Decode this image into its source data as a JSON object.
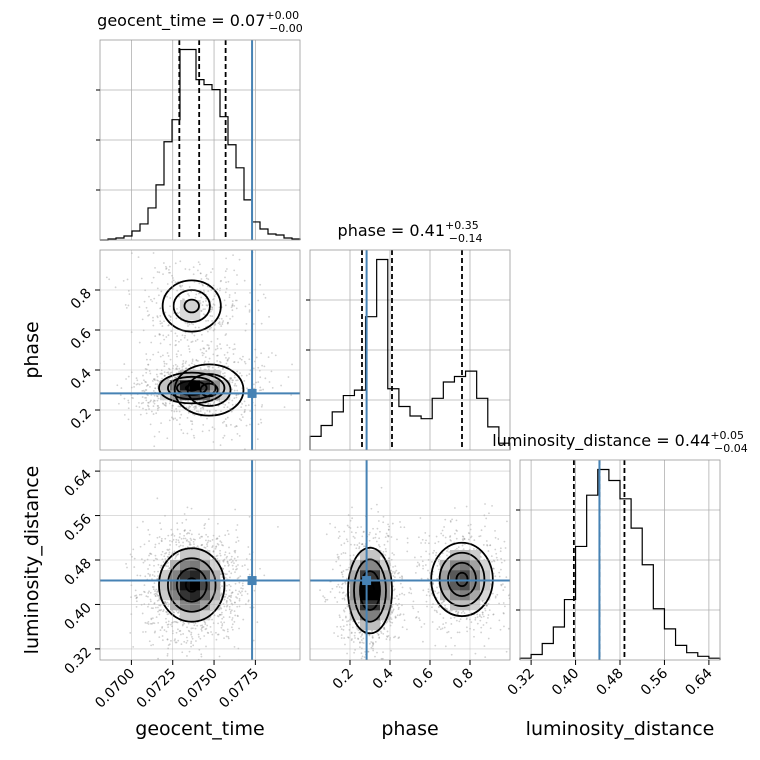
{
  "chart_data": {
    "type": "corner",
    "parameters": [
      "geocent_time",
      "phase",
      "luminosity_distance"
    ],
    "axis_labels": [
      "geocent_time",
      "phase",
      "luminosity_distance"
    ],
    "truth": {
      "geocent_time": 0.0773,
      "phase": 0.283,
      "luminosity_distance": 0.443
    },
    "truth_color": "#4682b4",
    "histogram_color": "#000000",
    "grid": true,
    "ticks": {
      "geocent_time": {
        "values": [
          0.07,
          0.0725,
          0.075,
          0.0775
        ],
        "labels": [
          "0.0700",
          "0.0725",
          "0.0750",
          "0.0775"
        ]
      },
      "phase": {
        "values": [
          0.2,
          0.4,
          0.6,
          0.8
        ],
        "labels": [
          "0.2",
          "0.4",
          "0.6",
          "0.8"
        ]
      },
      "luminosity_distance": {
        "values": [
          0.32,
          0.4,
          0.48,
          0.56,
          0.64
        ],
        "labels": [
          "0.32",
          "0.40",
          "0.48",
          "0.56",
          "0.64"
        ]
      }
    },
    "marginals": [
      {
        "parameter": "geocent_time",
        "title_prefix": "geocent_time = 0.07",
        "title_sup": "+0.00",
        "title_sub": "−0.00",
        "range": [
          0.0681,
          0.0802
        ],
        "quantiles": [
          0.0729,
          0.0741,
          0.0757
        ],
        "counts": [
          0,
          1,
          2,
          4,
          9,
          16,
          32,
          55,
          98,
          120,
          190,
          190,
          160,
          155,
          150,
          123,
          95,
          72,
          40,
          18,
          11,
          6,
          5,
          2,
          1
        ]
      },
      {
        "parameter": "phase",
        "title_prefix": "phase = 0.41",
        "title_sup": "+0.35",
        "title_sub": "−0.14",
        "range": [
          0.0,
          1.0
        ],
        "quantiles": [
          0.26,
          0.41,
          0.76
        ],
        "counts": [
          10,
          18,
          28,
          40,
          44,
          98,
          140,
          45,
          32,
          25,
          23,
          38,
          50,
          54,
          58,
          38,
          17,
          5
        ]
      },
      {
        "parameter": "luminosity_distance",
        "title_prefix": "luminosity_distance = 0.44",
        "title_sup": "+0.05",
        "title_sub": "−0.04",
        "range": [
          0.3,
          0.66
        ],
        "quantiles": [
          0.397,
          0.443,
          0.488
        ],
        "counts": [
          1,
          3,
          9,
          18,
          33,
          62,
          90,
          104,
          98,
          88,
          72,
          52,
          28,
          17,
          8,
          4,
          2,
          1
        ]
      }
    ],
    "densities_2d": [
      {
        "x": "geocent_time",
        "y": "phase",
        "modes": [
          {
            "x": 0.07365,
            "y": 0.31,
            "sx": 0.0009,
            "sy": 0.035,
            "weight": 1.3
          },
          {
            "x": 0.07365,
            "y": 0.72,
            "sx": 0.0011,
            "sy": 0.08,
            "weight": 0.55
          },
          {
            "x": 0.0747,
            "y": 0.3,
            "sx": 0.0013,
            "sy": 0.08,
            "weight": 0.55
          }
        ]
      },
      {
        "x": "geocent_time",
        "y": "luminosity_distance",
        "modes": [
          {
            "x": 0.07365,
            "y": 0.435,
            "sx": 0.0009,
            "sy": 0.03,
            "weight": 1.0
          }
        ]
      },
      {
        "x": "phase",
        "y": "luminosity_distance",
        "modes": [
          {
            "x": 0.3,
            "y": 0.425,
            "sx": 0.05,
            "sy": 0.035,
            "weight": 1.2
          },
          {
            "x": 0.76,
            "y": 0.445,
            "sx": 0.07,
            "sy": 0.03,
            "weight": 0.9
          }
        ]
      }
    ]
  }
}
